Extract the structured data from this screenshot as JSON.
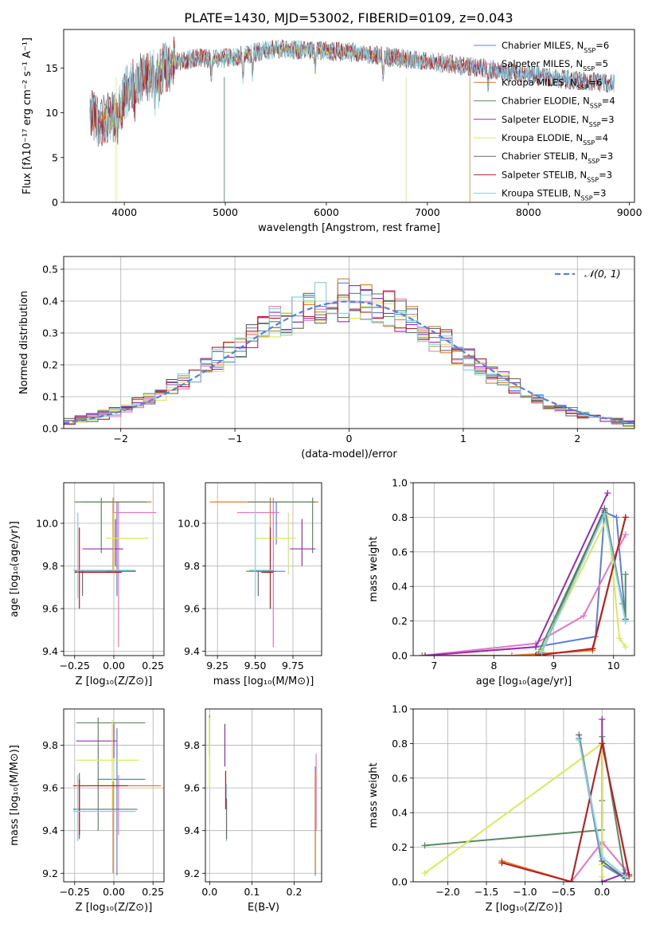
{
  "title": "PLATE=1430, MJD=53002, FIBERID=0109, z=0.043",
  "colors": [
    "#5b7fd6",
    "#e377c2",
    "#e07b28",
    "#5a8a63",
    "#9b2ab8",
    "#d8ea57",
    "#6a6a6a",
    "#b81c25",
    "#7ed3df"
  ],
  "chart_data": [
    {
      "id": "spectrum",
      "type": "line",
      "xlabel": "wavelength [Angstrom, rest frame]",
      "ylabel": "Flux [fλ10⁻¹⁷ erg cm⁻² s⁻¹ A⁻¹]",
      "xlim": [
        3400,
        9050
      ],
      "ylim": [
        0,
        19.3
      ],
      "xticks": [
        4000,
        5000,
        6000,
        7000,
        8000,
        9000
      ],
      "yticks": [
        0,
        5,
        10,
        15
      ],
      "grid": false,
      "legend_position": "top-right",
      "legend": [
        "Chabrier MILES, N_SSP=6",
        "Salpeter MILES, N_SSP=5",
        "Kroupa MILES, N_SSP=6",
        "Chabrier ELODIE, N_SSP=4",
        "Salpeter ELODIE, N_SSP=3",
        "Kroupa ELODIE, N_SSP=4",
        "Chabrier STELIB, N_SSP=3",
        "Salpeter STELIB, N_SSP=3",
        "Kroupa STELIB, N_SSP=3"
      ],
      "continuum": {
        "x": [
          3650,
          3750,
          3900,
          4000,
          4100,
          4200,
          4300,
          4400,
          4500,
          4700,
          4900,
          5100,
          5300,
          5500,
          5800,
          6000,
          6200,
          6500,
          6800,
          7000,
          7300,
          7600,
          8000,
          8400,
          8800
        ],
        "y": [
          10.5,
          9.0,
          9.5,
          12.0,
          13.5,
          14.0,
          14.3,
          15.0,
          15.6,
          16.1,
          16.0,
          16.2,
          16.8,
          17.1,
          17.0,
          16.9,
          16.8,
          16.4,
          16.0,
          15.8,
          15.3,
          14.9,
          14.3,
          13.7,
          13.3
        ]
      }
    },
    {
      "id": "residuals",
      "type": "step",
      "xlabel": "(data-model)/error",
      "ylabel": "Normed distribution",
      "xlim": [
        -2.5,
        2.5
      ],
      "ylim": [
        0,
        0.54
      ],
      "xticks": [
        -2,
        -1,
        0,
        1,
        2
      ],
      "yticks": [
        0.0,
        0.1,
        0.2,
        0.3,
        0.4,
        0.5
      ],
      "grid": true,
      "legend_position": "top-right",
      "legend": [
        "𝒩(0, 1)"
      ],
      "bin_width": 0.1
    },
    {
      "id": "age-vs-Z",
      "type": "errorbar",
      "xlabel": "Z [log₁₀(Z/Z⊙)]",
      "ylabel": "age  [log₁₀(age/yr)]",
      "xlim": [
        -0.32,
        0.32
      ],
      "ylim": [
        9.38,
        10.19
      ],
      "xticks": [
        -0.25,
        0.0,
        0.25
      ],
      "yticks": [
        9.4,
        9.6,
        9.8,
        10.0
      ],
      "points": [
        {
          "c": 0,
          "x": 0.02,
          "y": 9.775,
          "ex": [
            -0.05,
            0.14
          ],
          "ey": [
            9.66,
            10.1
          ]
        },
        {
          "c": 1,
          "x": 0.03,
          "y": 10.05,
          "ex": [
            0.0,
            0.27
          ],
          "ey": [
            9.42,
            10.1
          ]
        },
        {
          "c": 2,
          "x": -0.005,
          "y": 10.1,
          "ex": [
            -0.2,
            0.24
          ],
          "ey": [
            9.78,
            10.12
          ]
        },
        {
          "c": 3,
          "x": -0.08,
          "y": 10.1,
          "ex": [
            -0.25,
            0.21
          ],
          "ey": [
            9.86,
            10.12
          ]
        },
        {
          "c": 4,
          "x": 0.01,
          "y": 9.88,
          "ex": [
            -0.2,
            0.06
          ],
          "ey": [
            9.8,
            10.02
          ]
        },
        {
          "c": 5,
          "x": 0.0,
          "y": 9.93,
          "ex": [
            -0.05,
            0.22
          ],
          "ey": [
            9.76,
            10.05
          ]
        },
        {
          "c": 6,
          "x": -0.2,
          "y": 9.775,
          "ex": [
            -0.25,
            0.14
          ],
          "ey": [
            9.66,
            9.78
          ]
        },
        {
          "c": 7,
          "x": -0.22,
          "y": 9.77,
          "ex": [
            -0.25,
            0.05
          ],
          "ey": [
            9.6,
            9.98
          ]
        },
        {
          "c": 8,
          "x": -0.23,
          "y": 9.78,
          "ex": [
            -0.26,
            0.14
          ],
          "ey": [
            9.65,
            10.05
          ]
        }
      ]
    },
    {
      "id": "age-vs-mass",
      "type": "errorbar",
      "xlabel": "mass [log₁₀(M/M⊙)]",
      "ylabel": "",
      "xlim": [
        9.17,
        9.94
      ],
      "ylim": [
        9.38,
        10.19
      ],
      "xticks": [
        9.25,
        9.5,
        9.75
      ],
      "yticks": [
        9.4,
        9.6,
        9.8,
        10.0
      ],
      "points": [
        {
          "c": 0,
          "x": 9.64,
          "y": 9.775,
          "ex": [
            9.5,
            9.7
          ],
          "ey": [
            9.9,
            10.1
          ]
        },
        {
          "c": 1,
          "x": 9.62,
          "y": 10.05,
          "ex": [
            9.38,
            9.66
          ],
          "ey": [
            9.42,
            10.12
          ]
        },
        {
          "c": 2,
          "x": 9.6,
          "y": 10.1,
          "ex": [
            9.2,
            9.92
          ],
          "ey": [
            9.78,
            10.12
          ]
        },
        {
          "c": 3,
          "x": 9.88,
          "y": 10.1,
          "ex": [
            9.45,
            9.9
          ],
          "ey": [
            9.86,
            10.12
          ]
        },
        {
          "c": 4,
          "x": 9.81,
          "y": 9.88,
          "ex": [
            9.73,
            9.9
          ],
          "ey": [
            9.8,
            10.02
          ]
        },
        {
          "c": 5,
          "x": 9.72,
          "y": 9.93,
          "ex": [
            9.5,
            9.77
          ],
          "ey": [
            9.76,
            10.05
          ]
        },
        {
          "c": 6,
          "x": 9.52,
          "y": 9.775,
          "ex": [
            9.44,
            9.64
          ],
          "ey": [
            9.66,
            9.78
          ]
        },
        {
          "c": 7,
          "x": 9.6,
          "y": 9.77,
          "ex": [
            9.54,
            9.62
          ],
          "ey": [
            9.6,
            9.98
          ]
        },
        {
          "c": 8,
          "x": 9.5,
          "y": 9.78,
          "ex": [
            9.46,
            9.62
          ],
          "ey": [
            9.65,
            10.05
          ]
        }
      ]
    },
    {
      "id": "massweight-vs-age",
      "type": "line",
      "xlabel": "age  [log₁₀(age/yr)]",
      "ylabel": "mass weight",
      "xlim": [
        6.65,
        10.35
      ],
      "ylim": [
        0,
        1.0
      ],
      "xticks": [
        7,
        8,
        9,
        10
      ],
      "yticks": [
        0.0,
        0.2,
        0.4,
        0.6,
        0.8,
        1.0
      ],
      "grid": true,
      "series": [
        {
          "c": 0,
          "x": [
            6.8,
            8.7,
            9.7,
            9.85,
            10.05,
            10.2
          ],
          "y": [
            0.0,
            0.05,
            0.11,
            0.83,
            0.8,
            0.2
          ]
        },
        {
          "c": 1,
          "x": [
            6.8,
            8.7,
            9.5,
            10.2
          ],
          "y": [
            0.0,
            0.07,
            0.23,
            0.7
          ]
        },
        {
          "c": 2,
          "x": [
            6.8,
            8.3,
            9.65,
            10.2
          ],
          "y": [
            0.0,
            0.0,
            0.03,
            0.8
          ]
        },
        {
          "c": 3,
          "x": [
            8.75,
            9.85,
            10.15,
            10.2,
            10.2
          ],
          "y": [
            0.02,
            0.84,
            0.3,
            0.21,
            0.47
          ]
        },
        {
          "c": 4,
          "x": [
            6.85,
            8.7,
            9.9
          ],
          "y": [
            0.0,
            0.05,
            0.94
          ]
        },
        {
          "c": 5,
          "x": [
            8.8,
            9.9,
            10.1,
            10.2
          ],
          "y": [
            0.03,
            0.8,
            0.1,
            0.05
          ]
        },
        {
          "c": 6,
          "x": [
            8.8,
            9.85,
            10.2
          ],
          "y": [
            0.02,
            0.85,
            0.21
          ]
        },
        {
          "c": 7,
          "x": [
            8.7,
            9.65,
            10.2
          ],
          "y": [
            0.0,
            0.04,
            0.8
          ]
        },
        {
          "c": 8,
          "x": [
            8.8,
            9.85,
            10.2
          ],
          "y": [
            0.02,
            0.82,
            0.2
          ]
        }
      ]
    },
    {
      "id": "mass-vs-Z",
      "type": "errorbar",
      "xlabel": "Z [log₁₀(Z/Z⊙)]",
      "ylabel": "mass [log₁₀(M/M⊙)]",
      "xlim": [
        -0.32,
        0.32
      ],
      "ylim": [
        9.16,
        9.97
      ],
      "xticks": [
        -0.25,
        0.0,
        0.25
      ],
      "yticks": [
        9.2,
        9.4,
        9.6,
        9.8
      ],
      "points": [
        {
          "c": 0,
          "x": 0.02,
          "y": 9.64,
          "ex": [
            -0.1,
            0.2
          ],
          "ey": [
            9.19,
            9.88
          ]
        },
        {
          "c": 1,
          "x": 0.03,
          "y": 9.61,
          "ex": [
            -0.16,
            0.28
          ],
          "ey": [
            9.38,
            9.66
          ]
        },
        {
          "c": 2,
          "x": -0.005,
          "y": 9.61,
          "ex": [
            -0.22,
            0.3
          ],
          "ey": [
            9.2,
            9.63
          ]
        },
        {
          "c": 3,
          "x": -0.1,
          "y": 9.905,
          "ex": [
            -0.24,
            0.2
          ],
          "ey": [
            9.4,
            9.93
          ]
        },
        {
          "c": 4,
          "x": 0.0,
          "y": 9.82,
          "ex": [
            -0.24,
            0.02
          ],
          "ey": [
            9.74,
            9.9
          ]
        },
        {
          "c": 5,
          "x": -0.01,
          "y": 9.73,
          "ex": [
            -0.24,
            0.16
          ],
          "ey": [
            9.5,
            9.92
          ]
        },
        {
          "c": 6,
          "x": -0.22,
          "y": 9.5,
          "ex": [
            -0.26,
            0.15
          ],
          "ey": [
            9.36,
            9.67
          ]
        },
        {
          "c": 7,
          "x": -0.22,
          "y": 9.61,
          "ex": [
            -0.26,
            0.09
          ],
          "ey": [
            9.38,
            9.64
          ]
        },
        {
          "c": 8,
          "x": -0.23,
          "y": 9.49,
          "ex": [
            -0.26,
            0.14
          ],
          "ey": [
            9.35,
            9.66
          ]
        }
      ]
    },
    {
      "id": "mass-vs-EBV",
      "type": "errorbar",
      "xlabel": "E(B-V)",
      "ylabel": "",
      "xlim": [
        -0.01,
        0.265
      ],
      "ylim": [
        9.16,
        9.97
      ],
      "xticks": [
        0.0,
        0.1,
        0.2
      ],
      "yticks": [
        9.2,
        9.4,
        9.6,
        9.8
      ],
      "points": [
        {
          "c": 0,
          "x": 0.25,
          "y": 9.64,
          "ex": [
            0.25,
            0.25
          ],
          "ey": [
            9.19,
            9.7
          ]
        },
        {
          "c": 2,
          "x": 0.25,
          "y": 9.61,
          "ex": [
            0.25,
            0.25
          ],
          "ey": [
            9.2,
            9.68
          ]
        },
        {
          "c": 1,
          "x": 0.252,
          "y": 9.65,
          "ex": [
            0.252,
            0.252
          ],
          "ey": [
            9.4,
            9.76
          ]
        },
        {
          "c": 3,
          "x": 0.0,
          "y": 9.9,
          "ex": [
            0.0,
            0.0
          ],
          "ey": [
            9.75,
            9.94
          ]
        },
        {
          "c": 5,
          "x": 0.0,
          "y": 9.75,
          "ex": [
            0.0,
            0.0
          ],
          "ey": [
            9.6,
            9.93
          ]
        },
        {
          "c": 4,
          "x": 0.036,
          "y": 9.8,
          "ex": [
            0.036,
            0.036
          ],
          "ey": [
            9.7,
            9.9
          ]
        },
        {
          "c": 7,
          "x": 0.038,
          "y": 9.6,
          "ex": [
            0.038,
            0.038
          ],
          "ey": [
            9.5,
            9.68
          ]
        },
        {
          "c": 8,
          "x": 0.04,
          "y": 9.5,
          "ex": [
            0.04,
            0.04
          ],
          "ey": [
            9.35,
            9.62
          ]
        },
        {
          "c": 6,
          "x": 0.04,
          "y": 9.49,
          "ex": [
            0.04,
            0.04
          ],
          "ey": [
            9.36,
            9.55
          ]
        }
      ]
    },
    {
      "id": "massweight-vs-Z",
      "type": "line",
      "xlabel": "Z [log₁₀(Z/Z⊙)]",
      "ylabel": "mass weight",
      "xlim": [
        -2.45,
        0.42
      ],
      "ylim": [
        0,
        1.0
      ],
      "xticks": [
        -2.0,
        -1.5,
        -1.0,
        -0.5,
        0.0
      ],
      "yticks": [
        0.0,
        0.2,
        0.4,
        0.6,
        0.8,
        1.0
      ],
      "grid": true,
      "series": [
        {
          "c": 0,
          "x": [
            -0.3,
            0.0,
            0.3,
            0.3
          ],
          "y": [
            0.83,
            0.1,
            0.02,
            0.05
          ]
        },
        {
          "c": 1,
          "x": [
            -0.4,
            0.0,
            0.3
          ],
          "y": [
            0.0,
            0.23,
            0.07
          ]
        },
        {
          "c": 2,
          "x": [
            -1.3,
            -0.4,
            0.0,
            0.35
          ],
          "y": [
            0.12,
            0.0,
            0.8,
            0.03
          ]
        },
        {
          "c": 3,
          "x": [
            -2.3,
            0.0,
            0.0,
            0.0,
            0.3
          ],
          "y": [
            0.21,
            0.3,
            0.47,
            0.84,
            0.02
          ]
        },
        {
          "c": 4,
          "x": [
            0.0,
            0.0,
            0.3
          ],
          "y": [
            0.94,
            0.0,
            0.05
          ]
        },
        {
          "c": 5,
          "x": [
            -2.3,
            0.0,
            0.0,
            0.0
          ],
          "y": [
            0.05,
            0.8,
            0.1,
            0.03
          ]
        },
        {
          "c": 6,
          "x": [
            -0.3,
            0.0,
            0.3
          ],
          "y": [
            0.85,
            0.12,
            0.02
          ]
        },
        {
          "c": 7,
          "x": [
            -1.3,
            -0.4,
            0.0,
            0.35
          ],
          "y": [
            0.11,
            0.0,
            0.8,
            0.04
          ]
        },
        {
          "c": 8,
          "x": [
            -0.3,
            0.0,
            0.3
          ],
          "y": [
            0.82,
            0.14,
            0.03
          ]
        }
      ]
    }
  ]
}
